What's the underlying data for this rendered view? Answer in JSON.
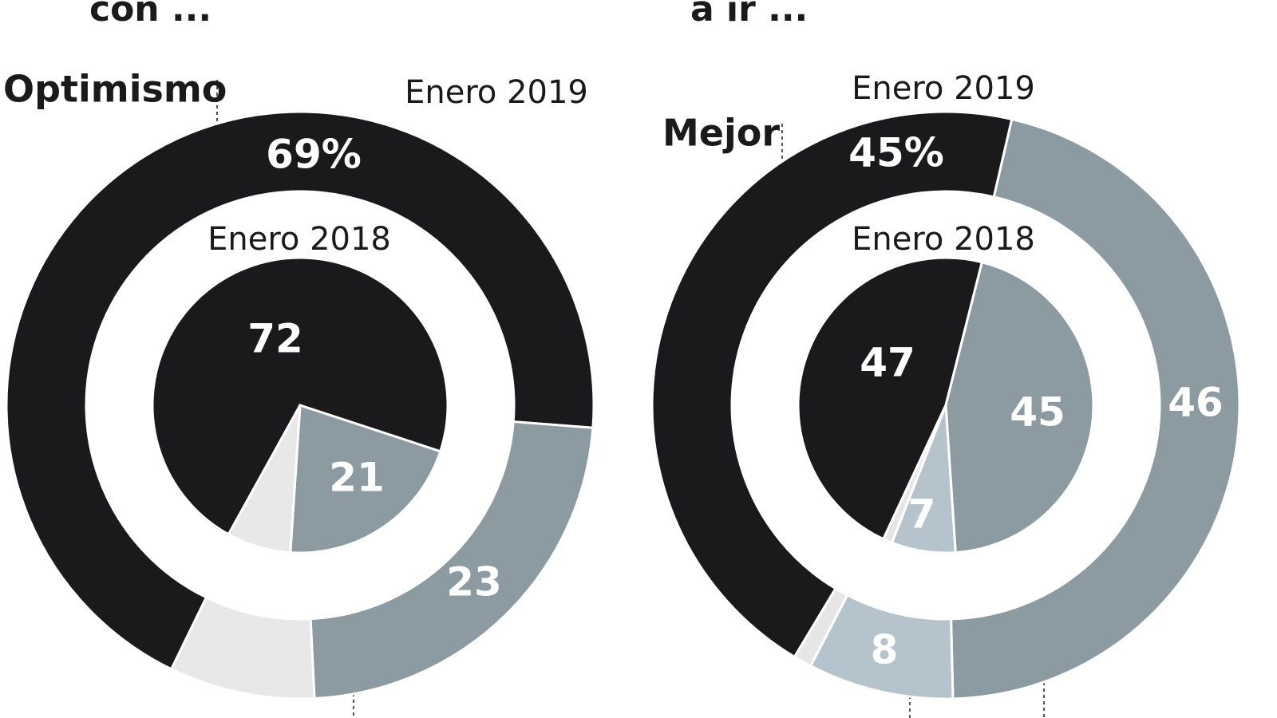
{
  "chart_data": [
    {
      "type": "donut",
      "title": "con ...",
      "annotation": "Optimismo",
      "rings": [
        {
          "name": "Enero 2019",
          "values": [
            69,
            23,
            8
          ],
          "value_labels": [
            "69%",
            "23",
            null
          ],
          "colors": [
            "#1a191b",
            "#8c9aa2",
            "#e8e8e8"
          ]
        },
        {
          "name": "Enero 2018",
          "values": [
            72,
            21,
            7
          ],
          "value_labels": [
            "72",
            "21",
            null
          ],
          "colors": [
            "#1a191b",
            "#8c9aa2",
            "#e8e8e8"
          ]
        }
      ]
    },
    {
      "type": "donut",
      "title": "a ir ...",
      "annotation": "Mejor",
      "rings": [
        {
          "name": "Enero 2019",
          "values": [
            45,
            46,
            8,
            1
          ],
          "value_labels": [
            "45%",
            "46",
            "8",
            null
          ],
          "colors": [
            "#1a191b",
            "#8c9aa2",
            "#b4c3cc",
            "#e6e6e6"
          ]
        },
        {
          "name": "Enero 2018",
          "values": [
            47,
            45,
            7,
            1
          ],
          "value_labels": [
            "47",
            "45",
            "7",
            null
          ],
          "colors": [
            "#1a191b",
            "#8c9aa2",
            "#b4c3cc",
            "#e6e6e6"
          ]
        }
      ]
    }
  ]
}
